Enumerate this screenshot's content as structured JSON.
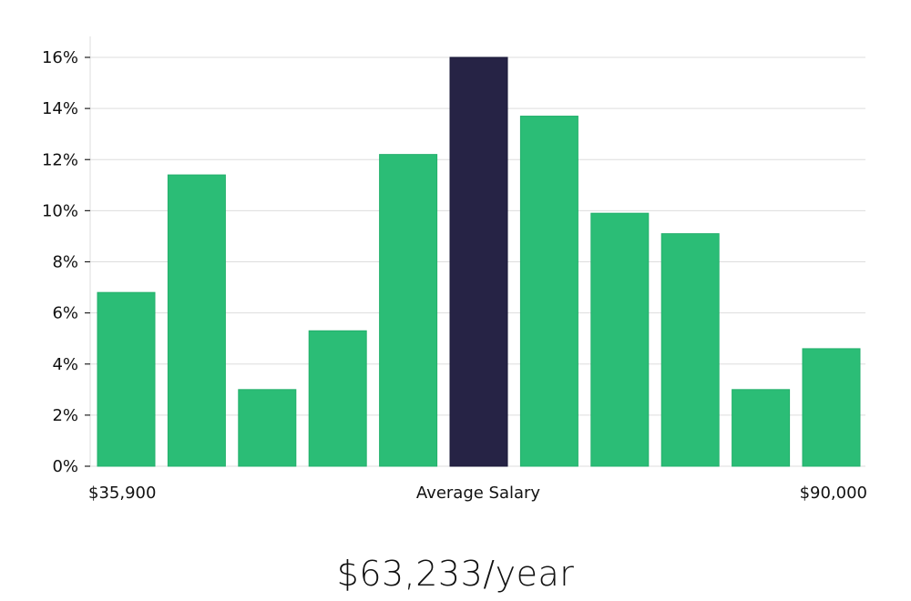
{
  "chart_data": {
    "type": "bar",
    "values": [
      6.8,
      11.4,
      3.0,
      5.3,
      12.2,
      16.0,
      13.7,
      9.9,
      9.1,
      3.0,
      4.6
    ],
    "highlight_index": 5,
    "ylim": [
      0,
      16
    ],
    "y_ticks": [
      "0%",
      "2%",
      "4%",
      "6%",
      "8%",
      "10%",
      "12%",
      "14%",
      "16%"
    ],
    "x_labels": {
      "left": "$35,900",
      "center": "Average Salary",
      "right": "$90,000"
    },
    "grid": true,
    "colors": {
      "bar": "#2bbd76",
      "highlight": "#262345",
      "grid": "#dddddd"
    }
  },
  "headline": "$63,233/year"
}
